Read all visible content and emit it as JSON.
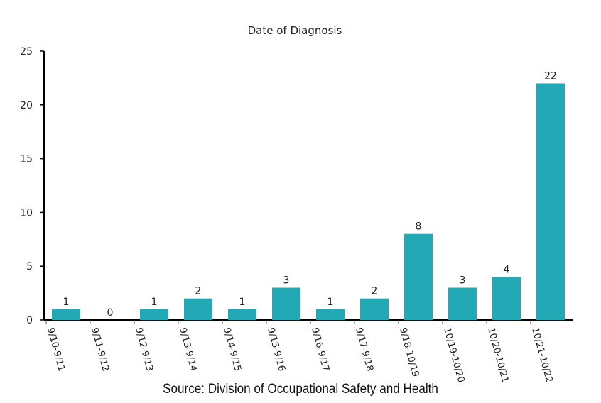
{
  "chart_data": {
    "type": "bar",
    "title": "Date of Diagnosis",
    "xlabel": "",
    "ylabel": "",
    "ylim": [
      0,
      25
    ],
    "yticks": [
      0,
      5,
      10,
      15,
      20,
      25
    ],
    "grid": false,
    "categories": [
      "9/10-9/11",
      "9/11-9/12",
      "9/12-9/13",
      "9/13-9/14",
      "9/14-9/15",
      "9/15-9/16",
      "9/16-9/17",
      "9/17-9/18",
      "9/18-10/19",
      "10/19-10/20",
      "10/20-10/21",
      "10/21-10/22"
    ],
    "values": [
      1,
      0,
      1,
      2,
      1,
      3,
      1,
      2,
      8,
      3,
      4,
      22
    ],
    "bar_color": "#22a9b5",
    "source": "Source: Division of Occupational Safety and Health"
  }
}
